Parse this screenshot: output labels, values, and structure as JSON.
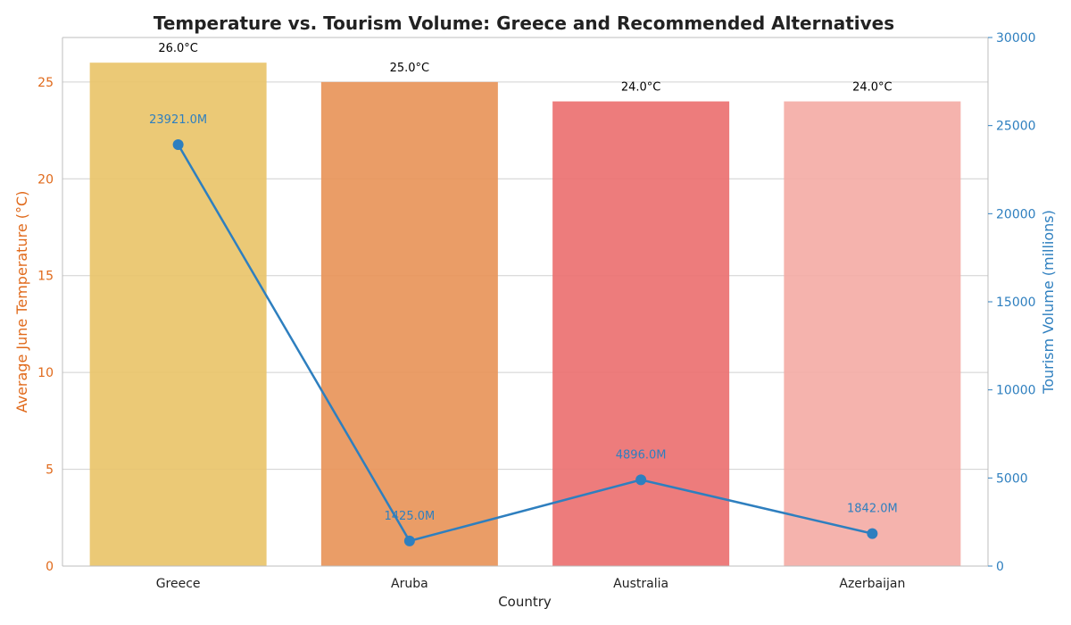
{
  "chart_data": {
    "type": "bar",
    "title": "Temperature vs. Tourism Volume: Greece and Recommended Alternatives",
    "xlabel": "Country",
    "ylabel_left": "Average June Temperature (°C)",
    "ylabel_right": "Tourism Volume (millions)",
    "categories": [
      "Greece",
      "Aruba",
      "Australia",
      "Azerbaijan"
    ],
    "series": [
      {
        "name": "Average June Temperature (°C)",
        "kind": "bar",
        "axis": "left",
        "values": [
          26.0,
          25.0,
          24.0,
          24.0
        ],
        "labels": [
          "26.0°C",
          "25.0°C",
          "24.0°C",
          "24.0°C"
        ],
        "colors": [
          "#e9c46a",
          "#e8955a",
          "#ec7171",
          "#f4aca6"
        ]
      },
      {
        "name": "Tourism Volume (millions)",
        "kind": "line",
        "axis": "right",
        "values": [
          23921.0,
          1425.0,
          4896.0,
          1842.0
        ],
        "labels": [
          "23921.0M",
          "1425.0M",
          "4896.0M",
          "1842.0M"
        ],
        "color": "#2e7fbf"
      }
    ],
    "ylim_left": [
      0,
      27.3
    ],
    "ylim_right": [
      0,
      30000
    ],
    "yticks_left": [
      "0",
      "5",
      "10",
      "15",
      "20",
      "25"
    ],
    "yticks_right": [
      "0",
      "5000",
      "10000",
      "15000",
      "20000",
      "25000",
      "30000"
    ],
    "grid": true,
    "legend": "none"
  }
}
